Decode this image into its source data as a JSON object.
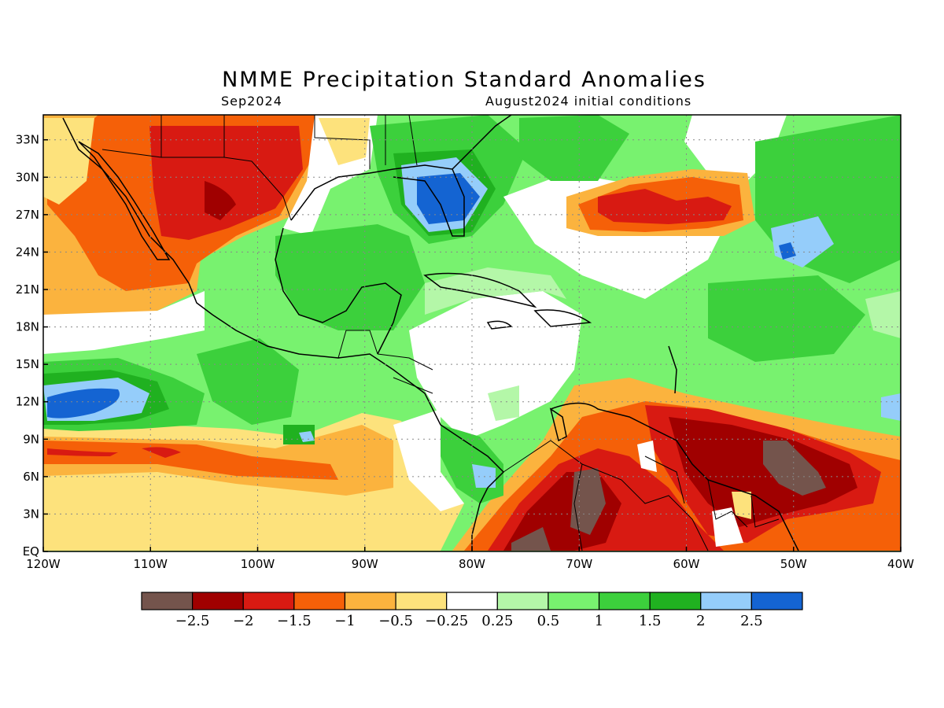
{
  "title": "NMME Precipitation Standard Anomalies",
  "subtitle_left": "Sep2024",
  "subtitle_right": "August2024 initial conditions",
  "map": {
    "lon_range": [
      -120,
      -40
    ],
    "lat_range": [
      0,
      35
    ],
    "lon_ticks": [
      {
        "value": -120,
        "label": "120W"
      },
      {
        "value": -110,
        "label": "110W"
      },
      {
        "value": -100,
        "label": "100W"
      },
      {
        "value": -90,
        "label": "90W"
      },
      {
        "value": -80,
        "label": "80W"
      },
      {
        "value": -70,
        "label": "70W"
      },
      {
        "value": -60,
        "label": "60W"
      },
      {
        "value": -50,
        "label": "50W"
      },
      {
        "value": -40,
        "label": "40W"
      }
    ],
    "lat_ticks": [
      {
        "value": 0,
        "label": "EQ"
      },
      {
        "value": 3,
        "label": "3N"
      },
      {
        "value": 6,
        "label": "6N"
      },
      {
        "value": 9,
        "label": "9N"
      },
      {
        "value": 12,
        "label": "12N"
      },
      {
        "value": 15,
        "label": "15N"
      },
      {
        "value": 18,
        "label": "18N"
      },
      {
        "value": 21,
        "label": "21N"
      },
      {
        "value": 24,
        "label": "24N"
      },
      {
        "value": 27,
        "label": "27N"
      },
      {
        "value": 30,
        "label": "30N"
      },
      {
        "value": 33,
        "label": "33N"
      }
    ]
  },
  "colorbar": {
    "colors": [
      "#74544c",
      "#a00000",
      "#d81a12",
      "#f56008",
      "#fbb33e",
      "#fde27c",
      "#ffffff",
      "#b4f7a8",
      "#78f26f",
      "#3cd03c",
      "#20b120",
      "#95cdfa",
      "#1464d2"
    ],
    "labels": [
      "-2.5",
      "-2",
      "-1.5",
      "-1",
      "-0.5",
      "-0.25",
      "0.25",
      "0.5",
      "1",
      "1.5",
      "2",
      "2.5"
    ]
  }
}
